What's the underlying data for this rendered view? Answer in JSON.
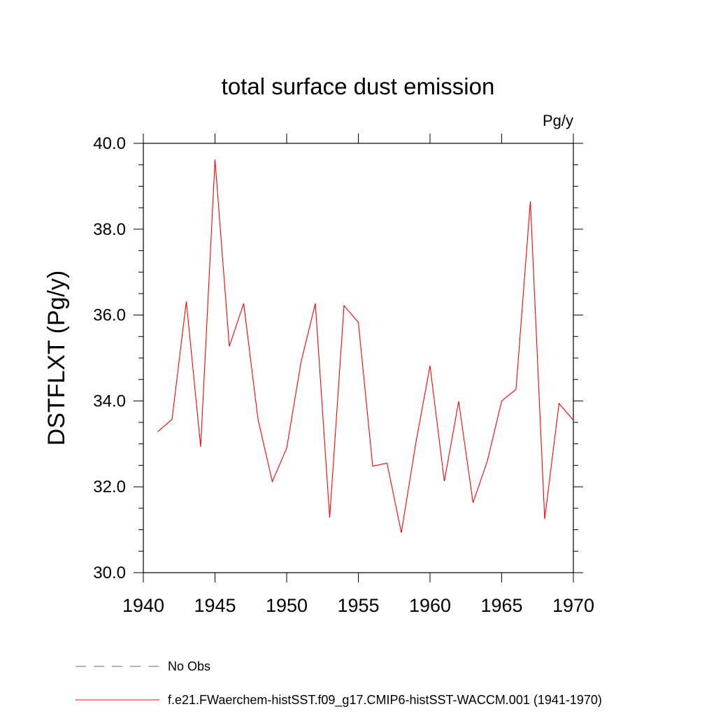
{
  "chart_data": {
    "type": "line",
    "title": "total surface dust emission",
    "units_label": "Pg/y",
    "xlabel": "",
    "ylabel": "DSTFLXT  (Pg/y)",
    "xlim": [
      1940,
      1970
    ],
    "ylim": [
      30.0,
      40.0
    ],
    "x_ticks": [
      1940,
      1945,
      1950,
      1955,
      1960,
      1965,
      1970
    ],
    "x_tick_labels": [
      "1940",
      "1945",
      "1950",
      "1955",
      "1960",
      "1965",
      "1970"
    ],
    "y_ticks": [
      30,
      32,
      34,
      36,
      38,
      40
    ],
    "y_tick_labels": [
      "30.0",
      "32.0",
      "34.0",
      "36.0",
      "38.0",
      "40.0"
    ],
    "grid": false,
    "legend_position": "bottom",
    "x": [
      1941,
      1942,
      1943,
      1944,
      1945,
      1946,
      1947,
      1948,
      1949,
      1950,
      1951,
      1952,
      1953,
      1954,
      1955,
      1956,
      1957,
      1958,
      1959,
      1960,
      1961,
      1962,
      1963,
      1964,
      1965,
      1966,
      1967,
      1968,
      1969,
      1970
    ],
    "series": [
      {
        "name": "f.e21.FWaerchem-histSST.f09_g17.CMIP6-histSST-WACCM.001 (1941-1970)",
        "color": "#ff0000",
        "style": "solid",
        "values": [
          33.28,
          33.57,
          36.32,
          32.93,
          39.62,
          35.27,
          36.27,
          33.57,
          32.12,
          32.9,
          34.9,
          36.27,
          31.28,
          36.22,
          35.83,
          32.48,
          32.55,
          30.93,
          33.0,
          34.82,
          32.13,
          33.99,
          31.63,
          32.6,
          34.0,
          34.27,
          38.65,
          31.25,
          33.94,
          33.55
        ]
      }
    ],
    "legend": [
      {
        "label": "No Obs",
        "color": "#6f5fb0",
        "style": "dashed"
      },
      {
        "label": "f.e21.FWaerchem-histSST.f09_g17.CMIP6-histSST-WACCM.001 (1941-1970)",
        "color": "#ff0000",
        "style": "solid"
      }
    ]
  }
}
